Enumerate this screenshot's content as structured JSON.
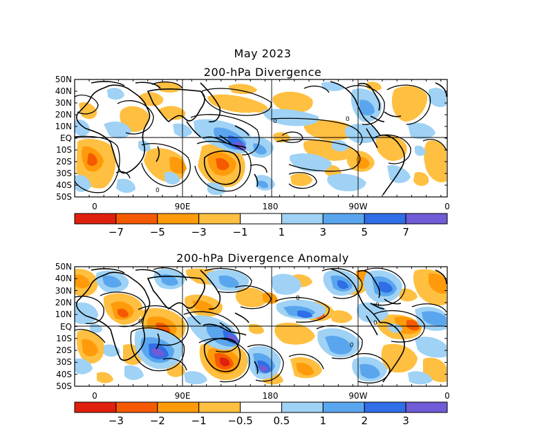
{
  "figure": {
    "main_title": "May 2023",
    "panel_top_title": "200-hPa Divergence",
    "panel_bottom_title": "200-hPa Divergence Anomaly"
  },
  "lat_labels": [
    "50N",
    "40N",
    "30N",
    "20N",
    "10N",
    "EQ",
    "10S",
    "20S",
    "30S",
    "40S",
    "50S"
  ],
  "lon_labels": [
    "0",
    "90E",
    "180",
    "90W",
    "0"
  ],
  "colorbar_top": {
    "colors": [
      "#e0200e",
      "#f55a00",
      "#ff9b0a",
      "#ffbf40",
      "#ffffff",
      "#9fd2f5",
      "#5aa6ee",
      "#2f6ee6",
      "#6f5cd6"
    ],
    "ticks": [
      "−7",
      "−5",
      "−3",
      "−1",
      "1",
      "3",
      "5",
      "7"
    ]
  },
  "colorbar_bottom": {
    "colors": [
      "#e0200e",
      "#f55a00",
      "#ff9b0a",
      "#ffbf40",
      "#ffffff",
      "#9fd2f5",
      "#5aa6ee",
      "#2f6ee6",
      "#6f5cd6"
    ],
    "ticks": [
      "−3",
      "−2",
      "−1",
      "−0.5",
      "0.5",
      "1",
      "2",
      "3"
    ]
  },
  "contour_label": "0"
}
